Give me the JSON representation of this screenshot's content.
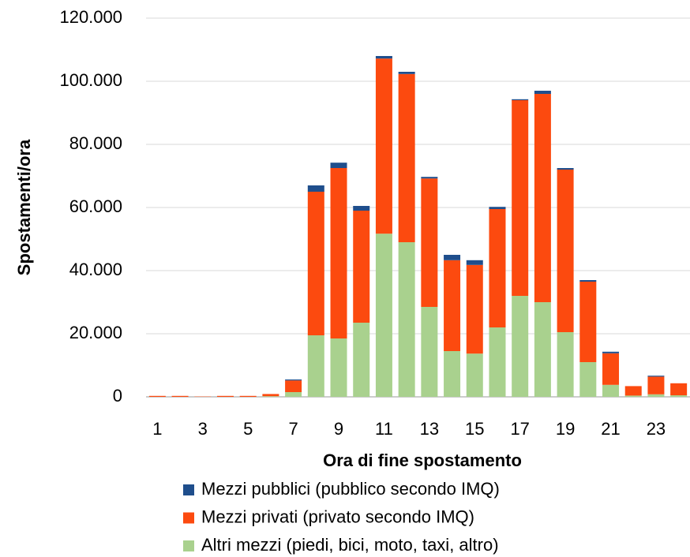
{
  "chart_data": {
    "type": "stacked_bar",
    "y_label": "Spostamenti/ora",
    "x_label": "Ora di fine spostamento",
    "categories": [
      "1",
      null,
      "3",
      null,
      "5",
      null,
      "7",
      null,
      "9",
      null,
      "11",
      null,
      "13",
      null,
      "15",
      null,
      "17",
      null,
      "19",
      null,
      "21",
      null,
      "23",
      null
    ],
    "series": [
      {
        "name": "Mezzi pubblici (pubblico secondo IMQ)",
        "color": "#1f4e8c",
        "values": [
          0,
          0,
          0,
          0,
          0,
          0,
          300,
          2000,
          1700,
          1500,
          800,
          700,
          500,
          1700,
          1500,
          700,
          300,
          1000,
          500,
          500,
          500,
          0,
          300,
          0
        ]
      },
      {
        "name": "Mezzi privati (privato secondo IMQ)",
        "color": "#fc4a0f",
        "values": [
          300,
          300,
          100,
          300,
          300,
          700,
          3700,
          45500,
          54000,
          35500,
          55500,
          53300,
          40700,
          28800,
          28100,
          37500,
          62000,
          66000,
          51500,
          25500,
          10000,
          3000,
          5600,
          3800
        ]
      },
      {
        "name": "Altri mezzi (piedi, bici, moto, taxi, altro)",
        "color": "#a9d18e",
        "values": [
          0,
          0,
          0,
          0,
          0,
          200,
          1500,
          19500,
          18500,
          23500,
          51700,
          49000,
          28500,
          14500,
          13700,
          22000,
          32000,
          30000,
          20500,
          11000,
          3800,
          400,
          800,
          500
        ]
      }
    ],
    "ylim": [
      0,
      120000
    ],
    "yticks": [
      0,
      {
        "value": 20000,
        "label": "20.000"
      },
      {
        "value": 40000,
        "label": "40.000"
      },
      {
        "value": 60000,
        "label": "60.000"
      },
      {
        "value": 80000,
        "label": "80.000"
      },
      {
        "value": 100000,
        "label": "100.000"
      },
      {
        "value": 120000,
        "label": "120.000"
      }
    ],
    "grid": true
  }
}
